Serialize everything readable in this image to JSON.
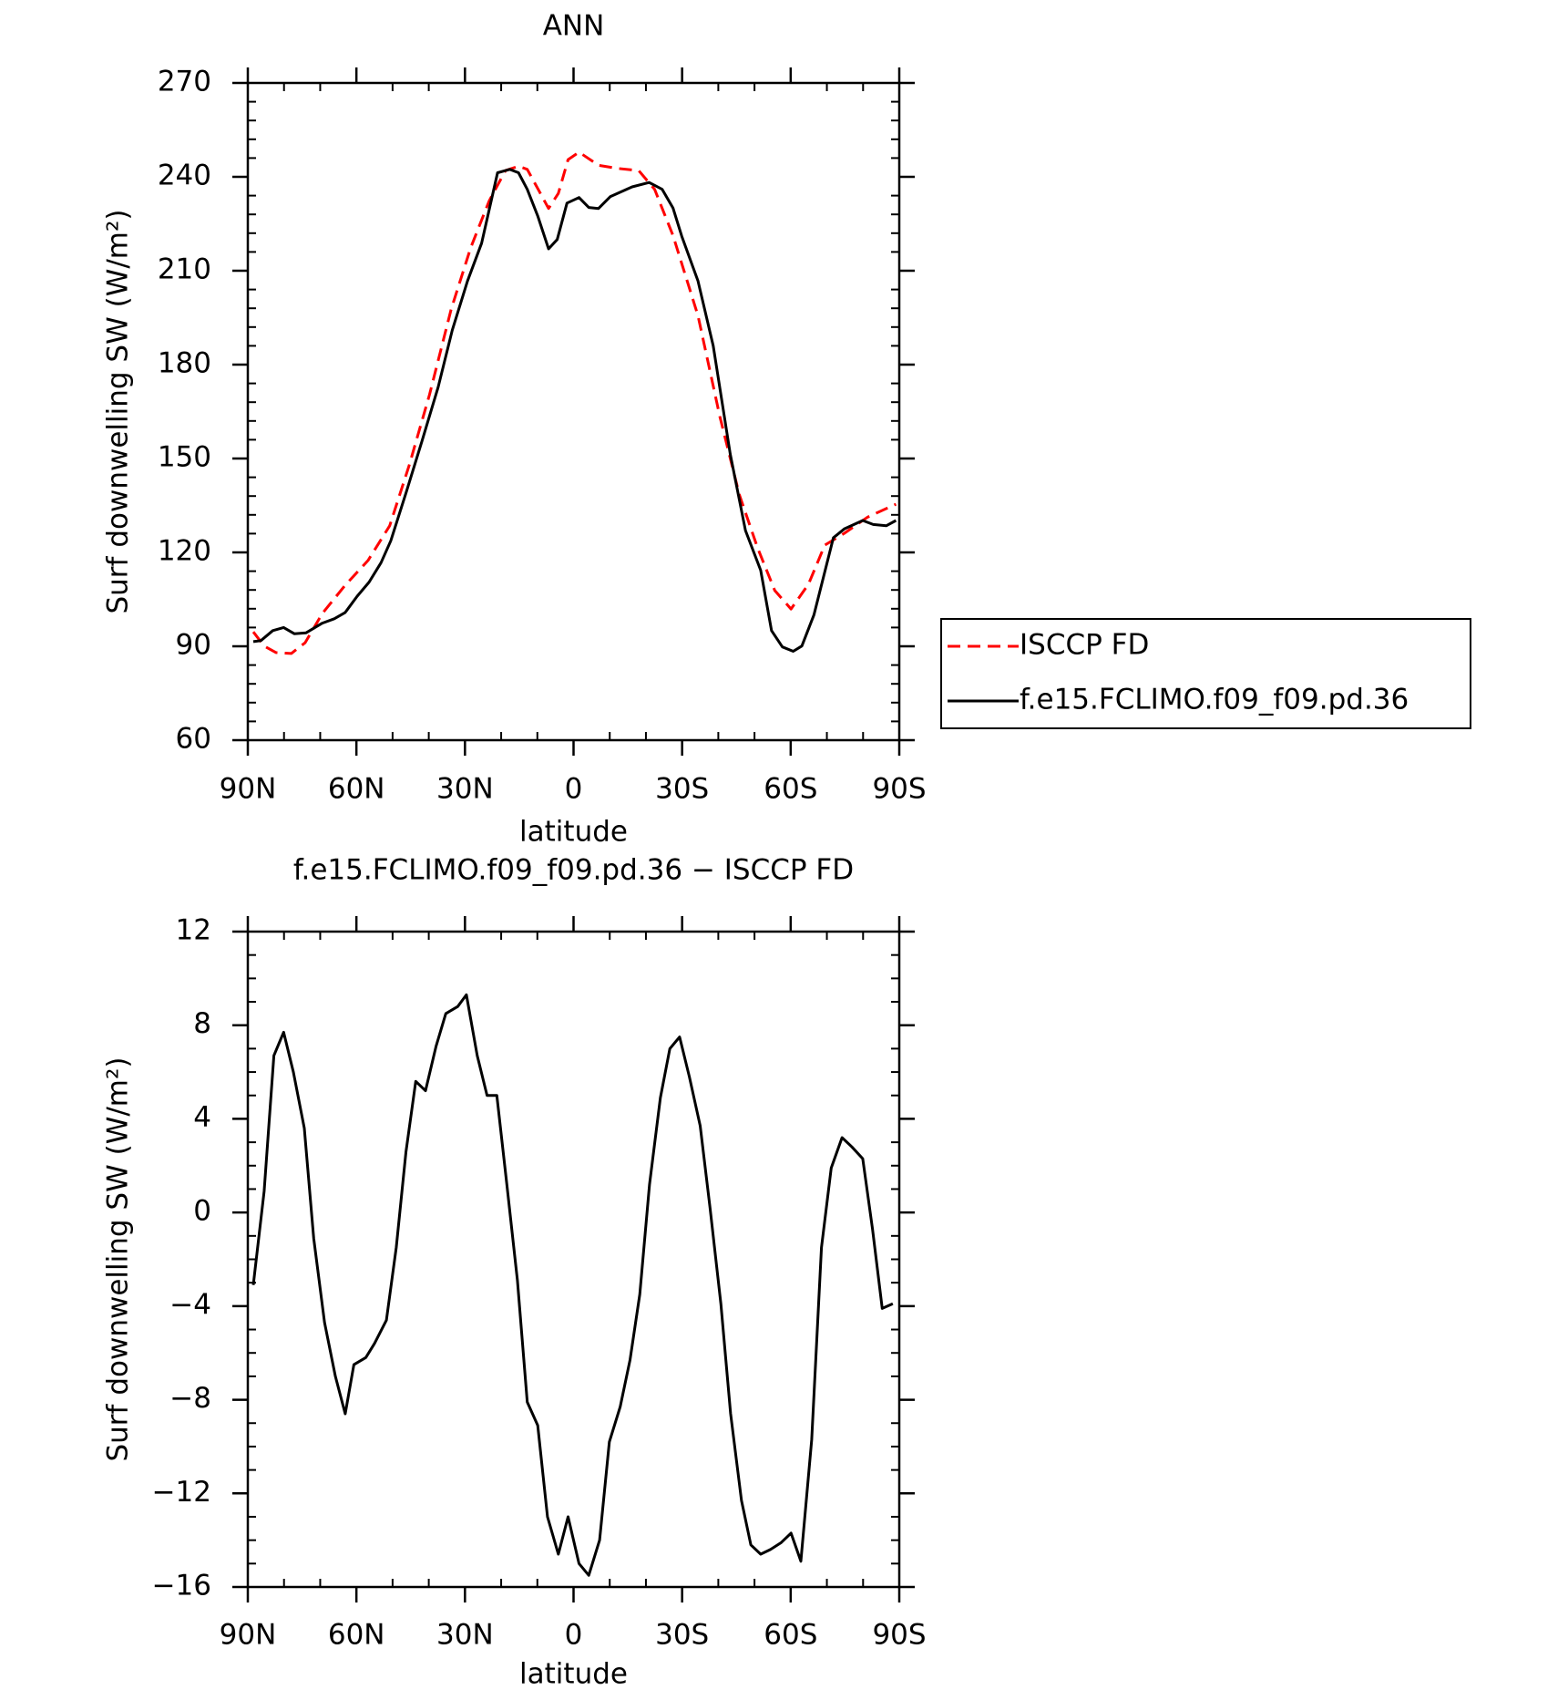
{
  "chart_data": [
    {
      "type": "line",
      "title": "ANN",
      "xlabel": "latitude",
      "ylabel": "Surf downwelling SW (W/m²)",
      "xlim": [
        90,
        -90
      ],
      "xticks": [
        {
          "value": 90,
          "label": "90N"
        },
        {
          "value": 60,
          "label": "60N"
        },
        {
          "value": 30,
          "label": "30N"
        },
        0,
        {
          "value": -30,
          "label": "30S"
        },
        {
          "value": -60,
          "label": "60S"
        },
        {
          "value": -90,
          "label": "90S"
        }
      ],
      "ylim": [
        60,
        270
      ],
      "yticks": [
        60,
        90,
        120,
        150,
        180,
        210,
        240,
        270
      ],
      "legend": "right",
      "series": [
        {
          "name": "ISCCP FD",
          "color": "#ff0000",
          "line_style": "dashed",
          "x": [
            88.5,
            85.5,
            82.2,
            78,
            74.2,
            69.4,
            63.1,
            56.8,
            50.8,
            45.4,
            39.8,
            33.8,
            28.4,
            23.3,
            18.8,
            15.2,
            12.8,
            9.3,
            6.9,
            4.2,
            1.5,
            -1.5,
            -6.9,
            -12,
            -18,
            -22.4,
            -27.5,
            -34.4,
            -40.4,
            -45.8,
            -50.8,
            -55.6,
            -60.1,
            -64.9,
            -69.4,
            -74.8,
            -81.3,
            -89.1
          ],
          "values": [
            94.6,
            90.1,
            88,
            87.7,
            91.1,
            100.5,
            109.5,
            117.4,
            128.5,
            147.9,
            170.4,
            197.7,
            217.4,
            232.3,
            242,
            243.4,
            242.4,
            235,
            229.9,
            234.7,
            245.5,
            247.9,
            243.7,
            242.7,
            242,
            236,
            221.2,
            195.6,
            163.5,
            138.5,
            121.6,
            107.8,
            101.9,
            109.8,
            122.3,
            126.1,
            131.3,
            135.4
          ]
        },
        {
          "name": "f.e15.FCLIMO.f09_f09.pd.36",
          "color": "#000000",
          "line_style": "solid",
          "x": [
            88.5,
            86.4,
            83.1,
            80.1,
            77.1,
            73.9,
            69.4,
            66.1,
            63.1,
            59.8,
            56.5,
            53.2,
            50.5,
            46.3,
            41.9,
            37.4,
            33.5,
            29.3,
            25.4,
            21,
            17.6,
            15.2,
            12.8,
            9.9,
            6.9,
            4.5,
            1.8,
            -1.5,
            -4.2,
            -6.9,
            -10.2,
            -16.2,
            -20.9,
            -24.5,
            -27.5,
            -29.9,
            -34.4,
            -38.6,
            -43.3,
            -47.5,
            -51.7,
            -54.7,
            -57.7,
            -60.7,
            -63.1,
            -66.4,
            -71.8,
            -74.8,
            -79.9,
            -82.8,
            -86.4,
            -89.1
          ],
          "values": [
            91.5,
            91.8,
            95,
            96,
            94,
            94.3,
            97.4,
            98.8,
            100.8,
            106,
            110.5,
            116.7,
            123.7,
            139,
            155.5,
            172.8,
            191,
            206.7,
            218.8,
            241.3,
            242.4,
            241.3,
            236,
            227.5,
            217,
            220,
            231.6,
            233.4,
            230.2,
            229.9,
            233.7,
            236.8,
            238.2,
            236,
            230,
            221,
            206.7,
            186,
            151.4,
            127,
            114.3,
            95,
            89.8,
            88.4,
            90.1,
            100,
            124.7,
            127.5,
            130.2,
            128.9,
            128.5,
            130.2
          ]
        }
      ]
    },
    {
      "type": "line",
      "title": "f.e15.FCLIMO.f09_f09.pd.36 − ISCCP FD",
      "xlabel": "latitude",
      "ylabel": "Surf downwelling SW (W/m²)",
      "xlim": [
        90,
        -90
      ],
      "xticks": [
        {
          "value": 90,
          "label": "90N"
        },
        {
          "value": 60,
          "label": "60N"
        },
        {
          "value": 30,
          "label": "30N"
        },
        0,
        {
          "value": -30,
          "label": "30S"
        },
        {
          "value": -60,
          "label": "60S"
        },
        {
          "value": -90,
          "label": "90S"
        }
      ],
      "ylim": [
        -16,
        12
      ],
      "yticks": [
        {
          "value": -16,
          "label": "−16"
        },
        {
          "value": -12,
          "label": "−12"
        },
        {
          "value": -8,
          "label": "−8"
        },
        {
          "value": -4,
          "label": "−4"
        },
        0,
        4,
        8,
        12
      ],
      "color": "#000000",
      "x": [
        88.5,
        85.5,
        82.8,
        80.1,
        77.4,
        74.4,
        71.8,
        68.8,
        65.8,
        63.1,
        60.7,
        57.4,
        55,
        51.7,
        49,
        46.3,
        43.6,
        40.9,
        38,
        35.3,
        32,
        29.6,
        26.6,
        23.9,
        21.2,
        18.5,
        15.5,
        12.8,
        9.9,
        7.2,
        4.2,
        1.5,
        -1.5,
        -4.2,
        -7.2,
        -9.9,
        -12.9,
        -15.6,
        -18.3,
        -21,
        -24,
        -26.6,
        -29.3,
        -32,
        -35,
        -37.7,
        -40.7,
        -43.4,
        -46.4,
        -49,
        -51.7,
        -54.4,
        -57.4,
        -60.1,
        -62.8,
        -65.8,
        -68.5,
        -71.2,
        -74.2,
        -76.9,
        -79.9,
        -82.6,
        -85.3,
        -88.2
      ],
      "values": [
        -3.1,
        0.9,
        6.7,
        7.7,
        6,
        3.6,
        -1.1,
        -4.7,
        -7,
        -8.6,
        -6.5,
        -6.2,
        -5.6,
        -4.6,
        -1.5,
        2.6,
        5.6,
        5.2,
        7.1,
        8.5,
        8.8,
        9.3,
        6.7,
        5,
        5,
        1.3,
        -2.9,
        -8.1,
        -9.1,
        -13,
        -14.6,
        -13,
        -15,
        -15.5,
        -14,
        -9.8,
        -8.3,
        -6.3,
        -3.5,
        1.2,
        4.9,
        7,
        7.5,
        5.8,
        3.7,
        0.2,
        -3.9,
        -8.6,
        -12.3,
        -14.2,
        -14.6,
        -14.4,
        -14.1,
        -13.7,
        -14.9,
        -9.7,
        -1.5,
        1.9,
        3.2,
        2.8,
        2.3,
        -0.7,
        -4.1,
        -3.9
      ]
    }
  ]
}
